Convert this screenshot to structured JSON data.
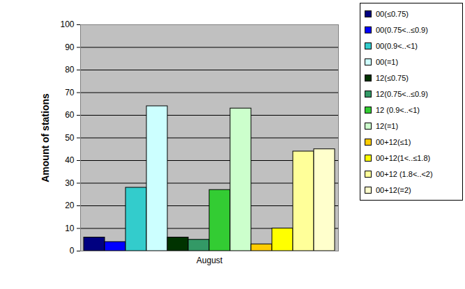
{
  "chart_data": {
    "type": "bar",
    "categories": [
      "August"
    ],
    "y_label": "Amount of stations",
    "ylim": [
      0,
      100
    ],
    "yticks": [
      0,
      10,
      20,
      30,
      40,
      50,
      60,
      70,
      80,
      90,
      100
    ],
    "grid": true,
    "legend": "right",
    "series": [
      {
        "name": "00(≤0.75)",
        "color": "#000080",
        "values": [
          6
        ]
      },
      {
        "name": "00(0.75<..≤0.9)",
        "color": "#0000ff",
        "values": [
          4
        ]
      },
      {
        "name": "00(0.9<..<1)",
        "color": "#33cccc",
        "values": [
          28
        ]
      },
      {
        "name": "00(=1)",
        "color": "#ccffff",
        "values": [
          64
        ]
      },
      {
        "name": "12(≤0.75)",
        "color": "#003300",
        "values": [
          6
        ]
      },
      {
        "name": "12(0.75<..≤0.9)",
        "color": "#339966",
        "values": [
          5
        ]
      },
      {
        "name": "12 (0.9<..<1)",
        "color": "#33cc33",
        "values": [
          27
        ]
      },
      {
        "name": "12(=1)",
        "color": "#ccffcc",
        "values": [
          63
        ]
      },
      {
        "name": "00+12(≤1)",
        "color": "#ffcc00",
        "values": [
          3
        ]
      },
      {
        "name": "00+12(1<..≤1.8)",
        "color": "#ffff00",
        "values": [
          10
        ]
      },
      {
        "name": "00+12 (1.8<..<2)",
        "color": "#ffff99",
        "values": [
          44
        ]
      },
      {
        "name": "00+12(=2)",
        "color": "#ffffcc",
        "values": [
          45
        ]
      }
    ]
  }
}
